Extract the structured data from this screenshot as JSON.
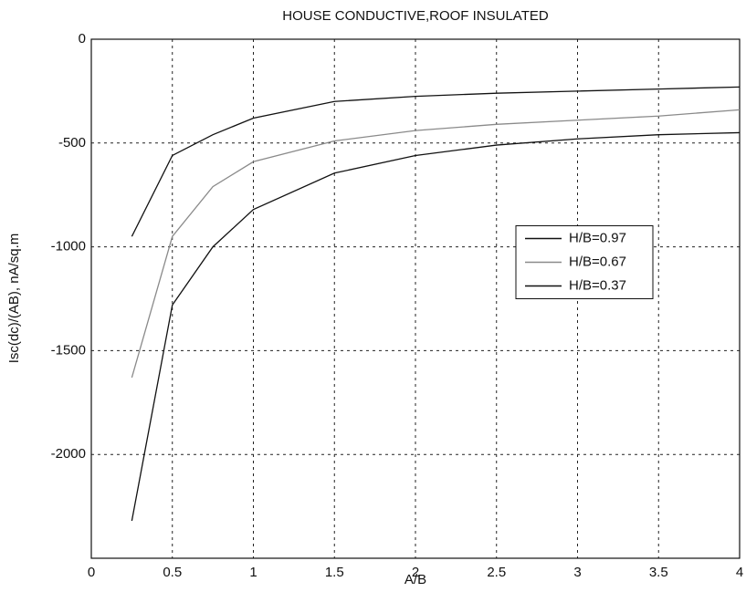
{
  "chart_data": {
    "type": "line",
    "title": "HOUSE CONDUCTIVE,ROOF INSULATED",
    "x_label": "A/B",
    "y_label": "Isc(dc)/(AB), nA/sq.m",
    "x": [
      0.25,
      0.5,
      0.75,
      1,
      1.5,
      2,
      2.5,
      3,
      3.5,
      4
    ],
    "series": [
      {
        "name": "H/B=0.97",
        "color": "#111111",
        "values": [
          -950,
          -560,
          -460,
          -380,
          -300,
          -275,
          -260,
          -250,
          -240,
          -230
        ]
      },
      {
        "name": "H/B=0.67",
        "color": "#8a8a8a",
        "values": [
          -1630,
          -950,
          -710,
          -590,
          -490,
          -440,
          -410,
          -390,
          -370,
          -340
        ]
      },
      {
        "name": "H/B=0.37",
        "color": "#111111",
        "values": [
          -2320,
          -1280,
          -1000,
          -820,
          -645,
          -560,
          -510,
          -480,
          -460,
          -450
        ]
      }
    ],
    "xlim": [
      0,
      4
    ],
    "xticks": [
      0,
      0.5,
      1,
      1.5,
      2,
      2.5,
      3,
      3.5,
      4
    ],
    "ylim": [
      -2500,
      0
    ],
    "yticks": [
      0,
      -500,
      -1000,
      -1500,
      -2000
    ],
    "grid": true,
    "legend_position": "center right"
  }
}
